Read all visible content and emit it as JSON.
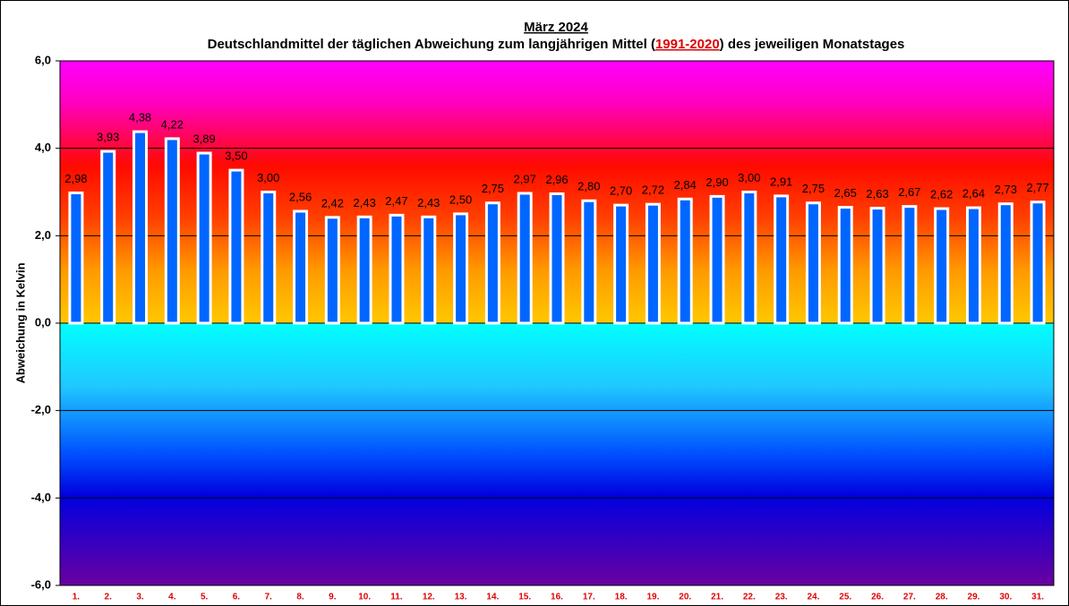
{
  "chart_data": {
    "type": "bar",
    "title": "März 2024",
    "subtitle": [
      "Deutschlandmittel der täglichen Abweichung zum langjährigen Mittel (",
      "1991-2020",
      ") des jeweiligen Monatstages"
    ],
    "y_label": "Abweichung  in Kelvin",
    "categories": [
      "1.",
      "2.",
      "3.",
      "4.",
      "5.",
      "6.",
      "7.",
      "8.",
      "9.",
      "10.",
      "11.",
      "12.",
      "13.",
      "14.",
      "15.",
      "16.",
      "17.",
      "18.",
      "19.",
      "20.",
      "21.",
      "22.",
      "23.",
      "24.",
      "25.",
      "26.",
      "27.",
      "28.",
      "29.",
      "30.",
      "31."
    ],
    "values": [
      2.98,
      3.93,
      4.38,
      4.22,
      3.89,
      3.5,
      3.0,
      2.56,
      2.42,
      2.43,
      2.47,
      2.43,
      2.5,
      2.75,
      2.97,
      2.96,
      2.8,
      2.7,
      2.72,
      2.84,
      2.9,
      3.0,
      2.91,
      2.75,
      2.65,
      2.63,
      2.67,
      2.62,
      2.64,
      2.73,
      2.77
    ],
    "value_labels": [
      "2,98",
      "3,93",
      "4,38",
      "4,22",
      "3,89",
      "3,50",
      "3,00",
      "2,56",
      "2,42",
      "2,43",
      "2,47",
      "2,43",
      "2,50",
      "2,75",
      "2,97",
      "2,96",
      "2,80",
      "2,70",
      "2,72",
      "2,84",
      "2,90",
      "3,00",
      "2,91",
      "2,75",
      "2,65",
      "2,63",
      "2,67",
      "2,62",
      "2,64",
      "2,73",
      "2,77"
    ],
    "color": "#0066ff",
    "ylim": [
      -6,
      6
    ],
    "yticks": [
      {
        "value": -6,
        "label": "-6,0"
      },
      {
        "value": -4,
        "label": "-4,0"
      },
      {
        "value": -2,
        "label": "-2,0"
      },
      {
        "value": 0,
        "label": "0,0"
      },
      {
        "value": 2,
        "label": "2,0"
      },
      {
        "value": 4,
        "label": "4,0"
      },
      {
        "value": 6,
        "label": "6,0"
      }
    ],
    "grid": true
  }
}
